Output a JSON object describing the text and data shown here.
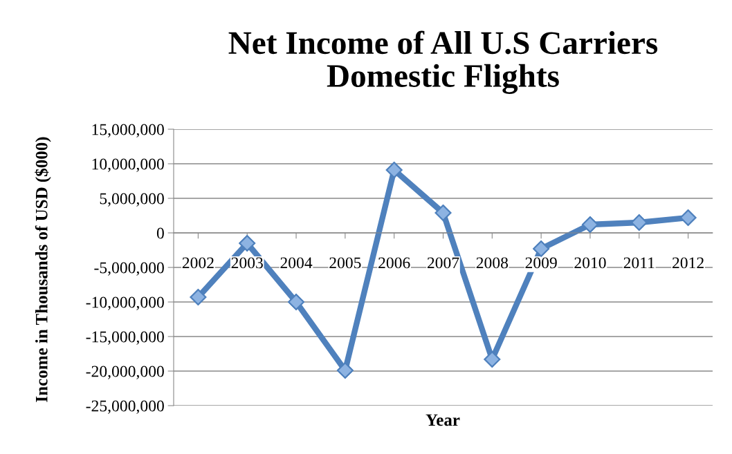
{
  "chart_data": {
    "type": "line",
    "title": "Net Income of All U.S Carriers\nDomestic Flights",
    "xlabel": "Year",
    "ylabel": "Income in Thousands of USD ($000)",
    "categories": [
      "2002",
      "2003",
      "2004",
      "2005",
      "2006",
      "2007",
      "2008",
      "2009",
      "2010",
      "2011",
      "2012"
    ],
    "series": [
      {
        "color": "#4f81bd",
        "values": [
          -9300000,
          -1500000,
          -10000000,
          -19900000,
          9100000,
          2900000,
          -18300000,
          -2300000,
          1200000,
          1500000,
          2200000
        ]
      }
    ],
    "ylim": [
      -25000000,
      15000000
    ],
    "yticks": [
      {
        "value": -25000000,
        "label": "-25,000,000"
      },
      {
        "value": -20000000,
        "label": "-20,000,000"
      },
      {
        "value": -15000000,
        "label": "-15,000,000"
      },
      {
        "value": -10000000,
        "label": "-10,000,000"
      },
      {
        "value": -5000000,
        "label": "-5,000,000"
      },
      0,
      {
        "value": 5000000,
        "label": "5,000,000"
      },
      {
        "value": 10000000,
        "label": "10,000,000"
      },
      {
        "value": 15000000,
        "label": "15,000,000"
      }
    ],
    "grid": "y",
    "legend": false,
    "marker": "diamond",
    "line_style": "solid"
  }
}
